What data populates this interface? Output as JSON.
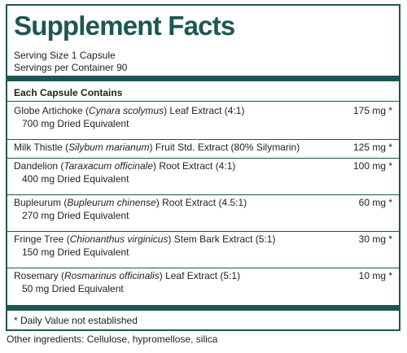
{
  "header": {
    "title": "Supplement Facts",
    "serving_size": "Serving Size 1 Capsule",
    "servings_per_container": "Servings per Container 90"
  },
  "table": {
    "heading": "Each Capsule Contains",
    "rows": [
      {
        "name": "Globe Artichoke (",
        "latin": "Cynara scolymus",
        "rest": ") Leaf Extract (4:1)",
        "amount": "175 mg *",
        "sub": "700 mg Dried Equivalent"
      },
      {
        "name": "Milk Thistle (",
        "latin": "Silybum marianum",
        "rest": ") Fruit Std. Extract (80% Silymarin)",
        "amount": "125 mg *"
      },
      {
        "name": "Dandelion (",
        "latin": "Taraxacum officinale",
        "rest": ") Root Extract (4:1)",
        "amount": "100 mg *",
        "sub": "400 mg Dried Equivalent"
      },
      {
        "name": "Bupleurum (",
        "latin": "Bupleurum chinense",
        "rest": ") Root Extract (4.5:1)",
        "amount": "60 mg *",
        "sub": "270 mg Dried Equivalent"
      },
      {
        "name": "Fringe Tree (",
        "latin": "Chionanthus virginicus",
        "rest": ") Stem Bark Extract (5:1)",
        "amount": "30 mg *",
        "sub": "150 mg Dried Equivalent"
      },
      {
        "name": "Rosemary (",
        "latin": "Rosmarinus officinalis",
        "rest": ") Leaf Extract (5:1)",
        "amount": "10 mg *",
        "sub": "50 mg Dried Equivalent"
      }
    ]
  },
  "footnote": "* Daily Value not established",
  "other_ingredients": "Other ingredients: Cellulose, hypromellose, silica"
}
